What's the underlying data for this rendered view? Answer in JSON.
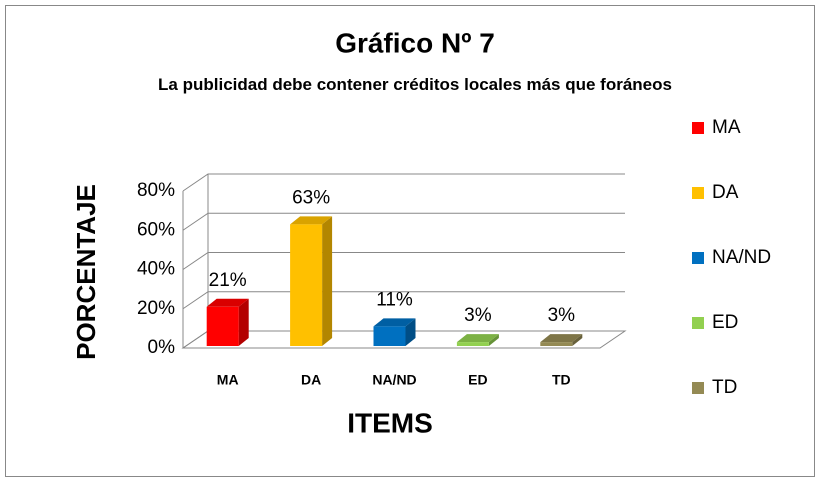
{
  "chart_data": {
    "type": "bar3d",
    "title": "Gráfico Nº 7",
    "subtitle": "La publicidad debe contener créditos locales más que foráneos",
    "x_label": "ITEMS",
    "y_label": "PORCENTAJE",
    "categories": [
      "MA",
      "DA",
      "NA/ND",
      "ED",
      "TD"
    ],
    "values": [
      21,
      63,
      11,
      3,
      3
    ],
    "value_labels": [
      "21%",
      "63%",
      "11%",
      "3%",
      "3%"
    ],
    "colors": [
      "#ff0000",
      "#ffc000",
      "#0070c0",
      "#92d050",
      "#948a54"
    ],
    "ylim": [
      0,
      80
    ],
    "yticks": [
      {
        "value": 0,
        "label": "0%"
      },
      {
        "value": 20,
        "label": "20%"
      },
      {
        "value": 40,
        "label": "40%"
      },
      {
        "value": 60,
        "label": "60%"
      },
      {
        "value": 80,
        "label": "80%"
      }
    ],
    "grid": true,
    "legend": "right"
  }
}
